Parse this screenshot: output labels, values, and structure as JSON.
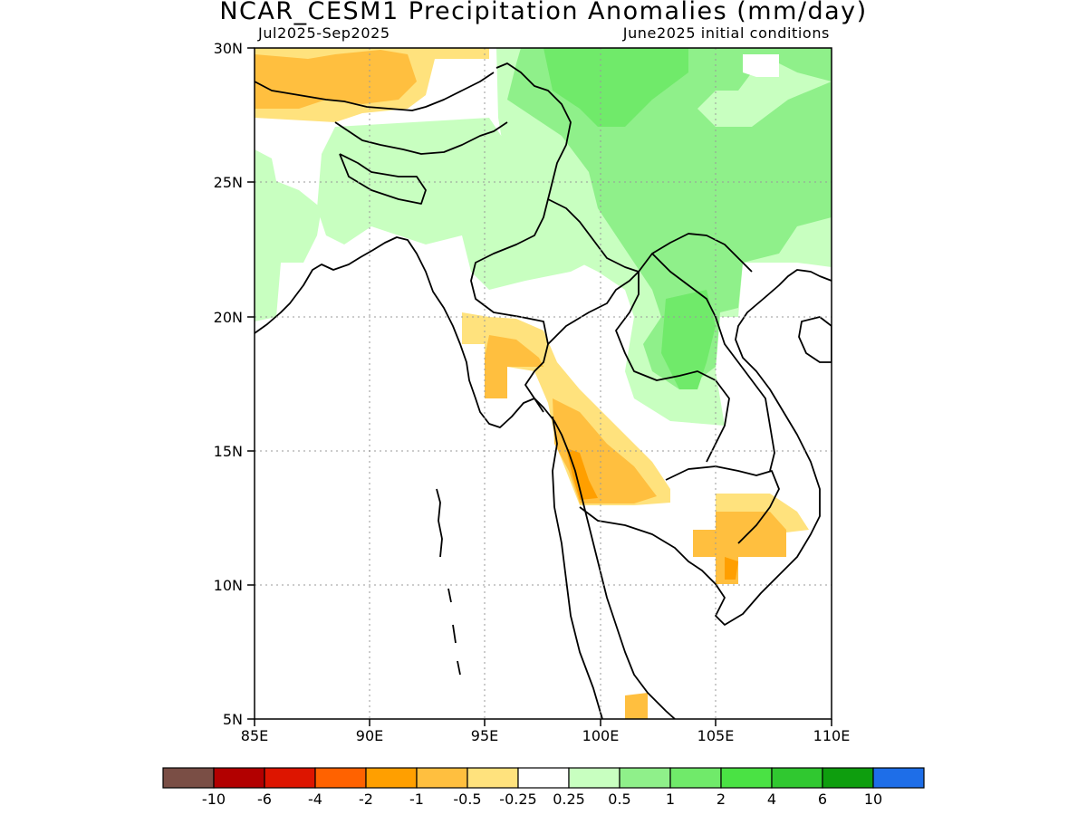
{
  "title": "NCAR_CESM1 Precipitation Anomalies (mm/day)",
  "subtitle_left": "Jul2025-Sep2025",
  "subtitle_right": "June2025 initial conditions",
  "lat_ticks": [
    "30N",
    "25N",
    "20N",
    "15N",
    "10N",
    "5N"
  ],
  "lon_ticks": [
    "85E",
    "90E",
    "95E",
    "100E",
    "105E",
    "110E"
  ],
  "extent": {
    "lon": [
      85,
      110
    ],
    "lat": [
      5,
      30
    ]
  },
  "grid": "dotted",
  "colorbar": {
    "colors": [
      "#7a4e45",
      "#b20000",
      "#dd1500",
      "#ff6200",
      "#ff9f00",
      "#ffbf3f",
      "#ffe27d",
      "#ffffff",
      "#c8ffc0",
      "#8ff08a",
      "#70ea6a",
      "#4ae244",
      "#30c830",
      "#0e9e0e",
      "#1e6ee8"
    ],
    "labels": [
      "-10",
      "-6",
      "-4",
      "-2",
      "-1",
      "-0.5",
      "-0.25",
      "0.25",
      "0.5",
      "1",
      "2",
      "4",
      "6",
      "10"
    ]
  }
}
